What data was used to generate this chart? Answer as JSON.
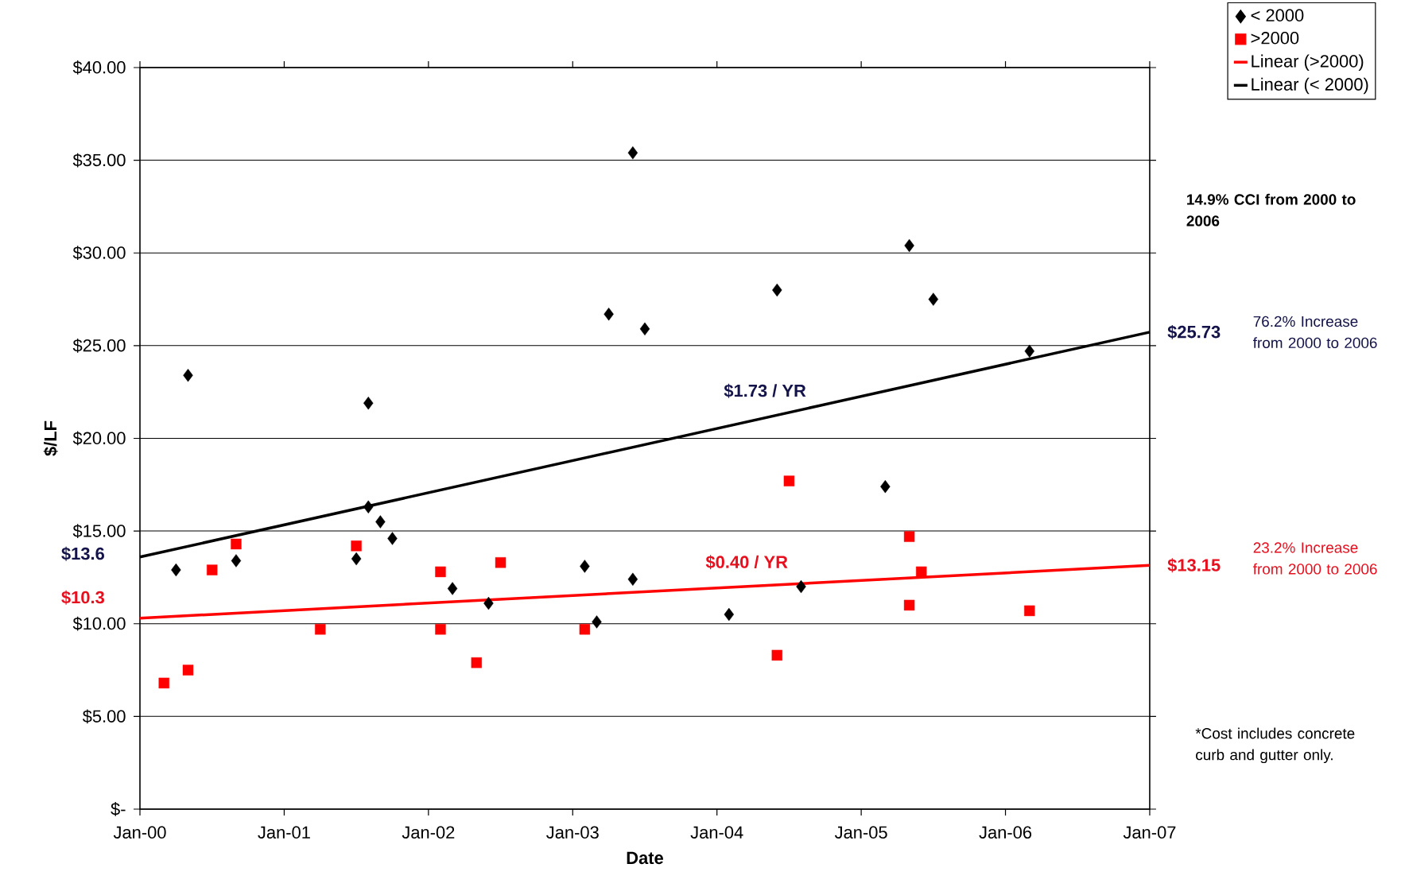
{
  "chart_data": {
    "type": "scatter",
    "xlabel": "Date",
    "ylabel": "$/LF",
    "xlim": [
      "2000-01",
      "2007-01"
    ],
    "ylim": [
      0,
      40
    ],
    "xticks": [
      {
        "value": "2000-01",
        "label": "Jan-00"
      },
      {
        "value": "2001-01",
        "label": "Jan-01"
      },
      {
        "value": "2002-01",
        "label": "Jan-02"
      },
      {
        "value": "2003-01",
        "label": "Jan-03"
      },
      {
        "value": "2004-01",
        "label": "Jan-04"
      },
      {
        "value": "2005-01",
        "label": "Jan-05"
      },
      {
        "value": "2006-01",
        "label": "Jan-06"
      },
      {
        "value": "2007-01",
        "label": "Jan-07"
      }
    ],
    "yticks": [
      {
        "value": 0,
        "label": "$-"
      },
      {
        "value": 5,
        "label": "$5.00"
      },
      {
        "value": 10,
        "label": "$10.00"
      },
      {
        "value": 15,
        "label": "$15.00"
      },
      {
        "value": 20,
        "label": "$20.00"
      },
      {
        "value": 25,
        "label": "$25.00"
      },
      {
        "value": 30,
        "label": "$30.00"
      },
      {
        "value": 35,
        "label": "$35.00"
      },
      {
        "value": 40,
        "label": "$40.00"
      }
    ],
    "grid": "y",
    "legend": "top right",
    "series": [
      {
        "name": "< 2000",
        "marker": "diamond",
        "color": "#000000",
        "x": [
          "2000-04",
          "2000-05",
          "2000-09",
          "2001-07",
          "2001-08",
          "2001-08",
          "2001-09",
          "2001-10",
          "2002-03",
          "2002-06",
          "2003-02",
          "2003-03",
          "2003-04",
          "2003-06",
          "2003-06",
          "2003-07",
          "2004-02",
          "2004-06",
          "2004-08",
          "2005-03",
          "2005-05",
          "2005-07",
          "2006-03"
        ],
        "values": [
          12.9,
          23.4,
          13.4,
          13.5,
          21.9,
          16.3,
          15.5,
          14.6,
          11.9,
          11.1,
          13.1,
          10.1,
          26.7,
          35.4,
          12.4,
          25.9,
          10.5,
          28.0,
          12.0,
          17.4,
          30.4,
          27.5,
          24.7
        ]
      },
      {
        "name": ">2000",
        "marker": "square",
        "color": "#ff0000",
        "x": [
          "2000-03",
          "2000-05",
          "2000-07",
          "2000-09",
          "2001-04",
          "2001-07",
          "2002-02",
          "2002-02",
          "2002-05",
          "2002-07",
          "2003-02",
          "2004-06",
          "2004-07",
          "2005-05",
          "2005-05",
          "2005-06",
          "2006-03"
        ],
        "values": [
          6.8,
          7.5,
          12.9,
          14.3,
          9.7,
          14.2,
          12.8,
          9.7,
          7.9,
          13.3,
          9.7,
          8.3,
          17.7,
          14.7,
          11.0,
          12.8,
          10.7
        ]
      },
      {
        "name": "Linear (>2000)",
        "type": "line",
        "color": "#ff0000",
        "x": [
          "2000-01",
          "2007-01"
        ],
        "values": [
          10.3,
          13.15
        ]
      },
      {
        "name": "Linear (< 2000)",
        "type": "line",
        "color": "#000000",
        "x": [
          "2000-01",
          "2007-01"
        ],
        "values": [
          13.6,
          25.73
        ]
      }
    ],
    "annotations": [
      {
        "text": "$13.6",
        "x": "2000-01",
        "y": 13.6
      },
      {
        "text": "$10.3",
        "x": "2000-01",
        "y": 10.3
      },
      {
        "text": "$25.73",
        "x": "2007-01",
        "y": 25.73
      },
      {
        "text": "$13.15",
        "x": "2007-01",
        "y": 13.15
      },
      "$1.73 / YR",
      "$0.40 / YR",
      "14.9% CCI from 2000 to 2006",
      "76.2% Increase from 2000 to 2006",
      "23.2% Increase from 2000 to 2006",
      "*Cost includes concrete curb and gutter only."
    ]
  }
}
